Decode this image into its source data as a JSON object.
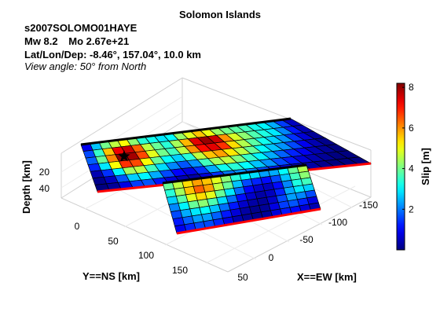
{
  "header": {
    "title": "Solomon Islands",
    "event_id": "s2007SOLOMO01HAYE",
    "magnitude": "Mw 8.2",
    "moment": "Mo 2.67e+21",
    "location": "Lat/Lon/Dep: -8.46°, 157.04°, 10.0 km",
    "view_angle": "View angle:  50° from North"
  },
  "chart_data": {
    "type": "heatmap",
    "projection": "3d",
    "title": "Solomon Islands",
    "xlabel": "Y==NS [km]",
    "ylabel": "X==EW [km]",
    "zlabel": "Depth [km]",
    "colorbar_label": "Slip [m]",
    "colorbar_range": [
      0,
      8.2
    ],
    "colorbar_ticks": [
      "2",
      "4",
      "6",
      "8"
    ],
    "ns_ticks": [
      "0",
      "50",
      "100",
      "150"
    ],
    "ew_ticks": [
      "-150",
      "-100",
      "-50",
      "0",
      "50"
    ],
    "depth_ticks": [
      "20",
      "40"
    ],
    "view_azimuth_deg": 50,
    "colormap": "jet",
    "segments": [
      {
        "name": "segment-1",
        "slip": [
          [
            0.9,
            2.6,
            4.0,
            4.6,
            5.1,
            4.2,
            3.4,
            3.2,
            2.9,
            3.1,
            4.3,
            4.9,
            5.6,
            5.0,
            4.3,
            4.0,
            3.8,
            3.6,
            3.2,
            3.0,
            2.4,
            1.5,
            0.5
          ],
          [
            1.6,
            3.5,
            5.6,
            7.3,
            7.6,
            6.4,
            4.6,
            3.9,
            3.4,
            4.4,
            5.7,
            7.4,
            8.0,
            7.6,
            6.0,
            4.8,
            4.2,
            3.7,
            3.3,
            2.9,
            2.1,
            1.2,
            0.4
          ],
          [
            1.8,
            3.9,
            6.1,
            8.1,
            7.9,
            6.6,
            4.9,
            4.0,
            3.6,
            4.6,
            6.0,
            7.1,
            7.4,
            6.8,
            5.4,
            4.5,
            3.8,
            3.2,
            2.7,
            2.2,
            1.4,
            0.7,
            0.2
          ],
          [
            1.3,
            2.9,
            5.1,
            6.8,
            6.6,
            5.1,
            3.9,
            3.1,
            2.7,
            3.4,
            4.6,
            5.6,
            5.9,
            5.3,
            4.6,
            3.9,
            3.1,
            2.6,
            2.2,
            1.6,
            0.9,
            0.4,
            0.1
          ],
          [
            0.4,
            1.4,
            3.0,
            4.4,
            4.6,
            3.6,
            2.8,
            2.1,
            1.7,
            2.2,
            3.6,
            4.4,
            4.6,
            4.1,
            3.5,
            3.0,
            2.4,
            1.8,
            1.3,
            0.9,
            0.4,
            0.2,
            0.0
          ],
          [
            0.1,
            0.5,
            1.7,
            2.7,
            3.0,
            2.4,
            1.6,
            1.0,
            0.8,
            1.4,
            2.4,
            3.2,
            3.4,
            3.1,
            2.6,
            2.2,
            1.6,
            1.2,
            0.7,
            0.4,
            0.2,
            0.0,
            0.0
          ],
          [
            0.0,
            0.2,
            0.8,
            1.5,
            1.7,
            1.2,
            0.7,
            0.4,
            0.3,
            0.7,
            1.4,
            2.0,
            2.2,
            2.0,
            1.6,
            1.2,
            0.8,
            0.5,
            0.3,
            0.1,
            0.0,
            0.0,
            0.0
          ]
        ]
      },
      {
        "name": "segment-2",
        "slip": [
          [
            3.9,
            4.6,
            5.4,
            5.9,
            5.6,
            4.9,
            4.2,
            3.4,
            3.0,
            2.8,
            2.3,
            2.4,
            3.1,
            3.9,
            4.5
          ],
          [
            3.4,
            4.4,
            5.6,
            6.4,
            5.9,
            4.6,
            3.9,
            2.6,
            1.6,
            1.3,
            1.1,
            1.6,
            2.6,
            3.6,
            4.2
          ],
          [
            2.7,
            3.8,
            4.9,
            5.4,
            4.9,
            3.9,
            2.9,
            1.9,
            1.0,
            0.6,
            0.5,
            1.1,
            2.1,
            3.3,
            3.6
          ],
          [
            2.1,
            3.0,
            3.9,
            4.2,
            3.7,
            2.8,
            1.9,
            1.1,
            0.6,
            0.3,
            0.5,
            1.3,
            2.4,
            2.9,
            2.7
          ],
          [
            1.6,
            2.4,
            2.9,
            3.1,
            2.6,
            1.9,
            1.2,
            0.6,
            0.3,
            0.2,
            0.6,
            1.6,
            2.3,
            2.1,
            1.6
          ],
          [
            1.2,
            1.8,
            2.3,
            2.3,
            1.8,
            1.2,
            0.7,
            0.3,
            0.1,
            0.2,
            0.8,
            1.5,
            1.7,
            1.3,
            0.8
          ],
          [
            0.9,
            1.3,
            1.6,
            1.6,
            1.3,
            0.8,
            0.4,
            0.2,
            0.1,
            0.2,
            0.7,
            1.2,
            1.1,
            0.7,
            0.4
          ]
        ]
      }
    ],
    "hypocenter_marker": "star",
    "fault_top_edge_color": "#000000",
    "fault_bottom_edge_color": "#ff0000"
  }
}
